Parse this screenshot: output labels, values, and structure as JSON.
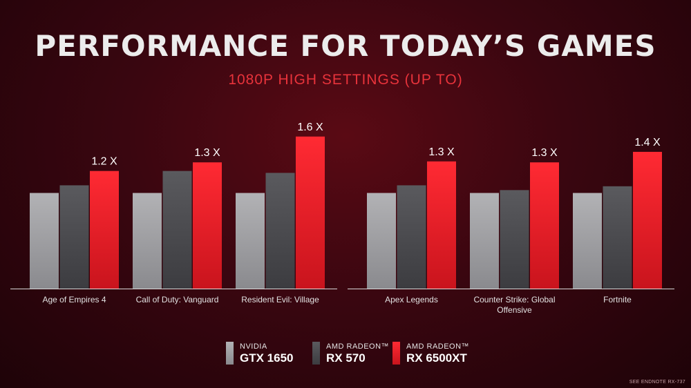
{
  "slide": {
    "title": "PERFORMANCE FOR TODAY’S GAMES",
    "subtitle": "1080P HIGH SETTINGS (UP TO)",
    "footnote": "SEE ENDNOTE RX-737"
  },
  "legend": [
    {
      "top": "NVIDIA",
      "bottom": "GTX 1650"
    },
    {
      "top": "AMD RADEON™",
      "bottom": "RX 570"
    },
    {
      "top": "AMD RADEON™",
      "bottom": "RX 6500XT"
    }
  ],
  "colors": {
    "gtx1650": "#a3a3a6",
    "rx570": "#4e4e52",
    "rx6500xt": "#f5222d",
    "label_red": "#e8333b"
  },
  "chart_data": [
    {
      "type": "bar",
      "categories": [
        "Age of Empires 4",
        "Call of Duty: Vanguard",
        "Resident Evil: Village"
      ],
      "series": [
        {
          "name": "NVIDIA GTX 1650",
          "values": [
            1.0,
            1.0,
            1.0
          ]
        },
        {
          "name": "AMD RADEON™ RX 570",
          "values": [
            1.08,
            1.23,
            1.21
          ]
        },
        {
          "name": "AMD RADEON™ RX 6500XT",
          "values": [
            1.23,
            1.32,
            1.59
          ]
        }
      ],
      "data_labels": [
        "1.2 X",
        "1.3 X",
        "1.6 X"
      ],
      "ylim": [
        0,
        1.62
      ]
    },
    {
      "type": "bar",
      "categories": [
        "Apex Legends",
        "Counter Strike: Global Offensive",
        "Fortnite"
      ],
      "series": [
        {
          "name": "NVIDIA GTX 1650",
          "values": [
            1.0,
            1.0,
            1.0
          ]
        },
        {
          "name": "AMD RADEON™ RX 570",
          "values": [
            1.08,
            1.03,
            1.07
          ]
        },
        {
          "name": "AMD RADEON™ RX 6500XT",
          "values": [
            1.33,
            1.32,
            1.43
          ]
        }
      ],
      "data_labels": [
        "1.3 X",
        "1.3 X",
        "1.4 X"
      ],
      "ylim": [
        0,
        1.62
      ]
    }
  ]
}
